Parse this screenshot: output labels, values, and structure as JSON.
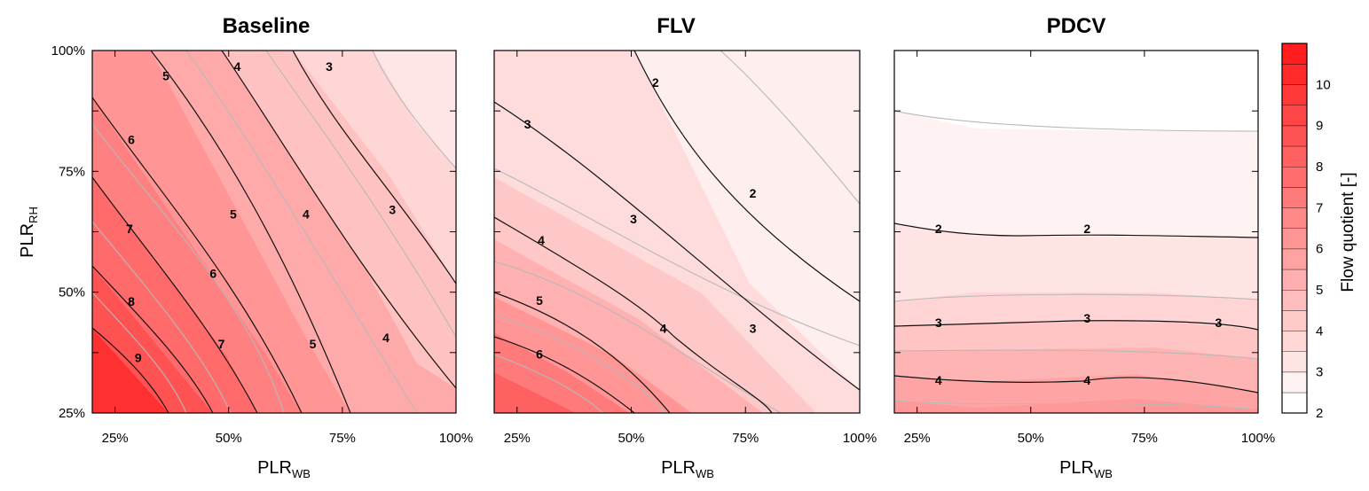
{
  "chart_data": {
    "type": "contour",
    "colorbar": {
      "label": "Flow quotient [-]",
      "ticks": [
        2,
        3,
        4,
        5,
        6,
        7,
        8,
        9,
        10
      ],
      "range": [
        2,
        11
      ],
      "level_step": 0.5,
      "colors": {
        "low": "#ffffff",
        "high": "#ff1010"
      }
    },
    "x_axis": {
      "label_main": "PLR",
      "label_sub": "WB",
      "ticks": [
        "25%",
        "50%",
        "75%",
        "100%"
      ],
      "tick_values": [
        25,
        50,
        75,
        100
      ],
      "range": [
        20,
        100
      ]
    },
    "y_axis": {
      "label_main": "PLR",
      "label_sub": "RH",
      "ticks": [
        "25%",
        "50%",
        "75%",
        "100%"
      ],
      "tick_values": [
        25,
        50,
        75,
        100
      ],
      "range": [
        25,
        100
      ]
    },
    "panels": [
      {
        "title": "Baseline",
        "corner_values": {
          "x20_y25": 10.5,
          "x100_y25": 4.0,
          "x20_y100": 6.0,
          "x100_y100": 2.4
        },
        "contour_labels": [
          {
            "text": "5",
            "x": 36.2,
            "y": 94.8
          },
          {
            "text": "4",
            "x": 51.9,
            "y": 96.7
          },
          {
            "text": "3",
            "x": 72.1,
            "y": 96.7
          },
          {
            "text": "6",
            "x": 28.6,
            "y": 81.6
          },
          {
            "text": "5",
            "x": 51.0,
            "y": 66.2
          },
          {
            "text": "4",
            "x": 67.0,
            "y": 66.2
          },
          {
            "text": "3",
            "x": 86.0,
            "y": 67.1
          },
          {
            "text": "7",
            "x": 28.2,
            "y": 63.1
          },
          {
            "text": "6",
            "x": 46.6,
            "y": 53.9
          },
          {
            "text": "8",
            "x": 28.6,
            "y": 48.1
          },
          {
            "text": "7",
            "x": 48.4,
            "y": 39.3
          },
          {
            "text": "5",
            "x": 68.5,
            "y": 39.3
          },
          {
            "text": "4",
            "x": 84.6,
            "y": 40.6
          },
          {
            "text": "9",
            "x": 30.1,
            "y": 36.5
          }
        ]
      },
      {
        "title": "FLV",
        "corner_values": {
          "x20_y25": 7.5,
          "x100_y25": 2.8,
          "x20_y100": 2.6,
          "x100_y100": 1.7
        },
        "contour_labels": [
          {
            "text": "2",
            "x": 55.3,
            "y": 93.4
          },
          {
            "text": "3",
            "x": 27.3,
            "y": 84.8
          },
          {
            "text": "2",
            "x": 76.6,
            "y": 70.5
          },
          {
            "text": "3",
            "x": 50.5,
            "y": 65.2
          },
          {
            "text": "4",
            "x": 30.3,
            "y": 60.8
          },
          {
            "text": "5",
            "x": 29.9,
            "y": 48.3
          },
          {
            "text": "4",
            "x": 57.0,
            "y": 42.5
          },
          {
            "text": "3",
            "x": 76.6,
            "y": 42.5
          },
          {
            "text": "6",
            "x": 29.9,
            "y": 37.2
          }
        ]
      },
      {
        "title": "PDCV",
        "corner_values": {
          "x20_y25": 5.6,
          "x100_y25": 5.0,
          "x20_y100": 1.6,
          "x100_y100": 1.6
        },
        "contour_labels": [
          {
            "text": "2",
            "x": 29.7,
            "y": 63.1
          },
          {
            "text": "2",
            "x": 62.4,
            "y": 63.1
          },
          {
            "text": "3",
            "x": 29.7,
            "y": 43.7
          },
          {
            "text": "3",
            "x": 62.4,
            "y": 44.6
          },
          {
            "text": "3",
            "x": 91.3,
            "y": 43.7
          },
          {
            "text": "4",
            "x": 29.7,
            "y": 31.8
          },
          {
            "text": "4",
            "x": 62.4,
            "y": 31.8
          }
        ]
      }
    ]
  }
}
